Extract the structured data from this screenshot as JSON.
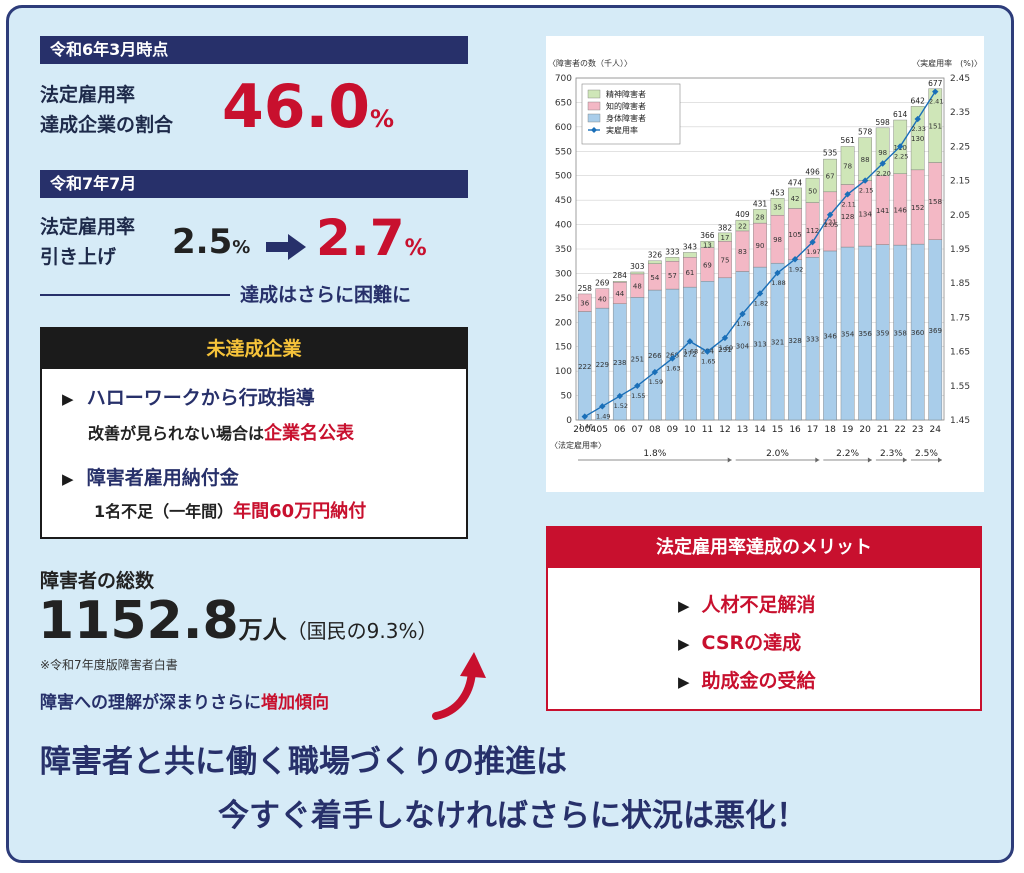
{
  "section1": {
    "date_label": "令和6年3月時点",
    "label_line1": "法定雇用率",
    "label_line2": "達成企業の割合",
    "value": "46.0",
    "unit": "%"
  },
  "section2": {
    "date_label": "令和7年7月",
    "label_line1": "法定雇用率",
    "label_line2": "引き上げ",
    "from_value": "2.5",
    "from_unit": "%",
    "to_value": "2.7",
    "to_unit": "%",
    "note": "達成はさらに困難に"
  },
  "unachieved": {
    "title": "未達成企業",
    "item1_title": "ハローワークから行政指導",
    "item1_sub_prefix": "改善が見られない場合は",
    "item1_sub_highlight": "企業名公表",
    "item2_title": "障害者雇用納付金",
    "item2_sub_prefix": "1名不足（一年間）",
    "item2_sub_highlight": "年間60万円納付"
  },
  "total": {
    "label": "障害者の総数",
    "value": "1152.8",
    "unit": "万人",
    "paren": "（国民の9.3%）",
    "source": "※令和7年度版障害者白書",
    "trend_prefix": "障害への理解が深まりさらに",
    "trend_highlight": "増加傾向"
  },
  "merits": {
    "title": "法定雇用率達成のメリット",
    "items": [
      "人材不足解消",
      "CSRの達成",
      "助成金の受給"
    ]
  },
  "footer": {
    "line1": "障害者と共に働く職場づくりの推進は",
    "line2": "今すぐ着手しなければさらに状況は悪化！"
  },
  "chart_data": {
    "type": "bar",
    "stacked": true,
    "y_left_label": "〈障害者の数（千人）〉",
    "y_right_label": "〈実雇用率　(%)〉",
    "ylim": [
      0,
      700
    ],
    "y2lim": [
      1.45,
      2.45
    ],
    "yticks": [
      "0",
      "50",
      "100",
      "150",
      "200",
      "250",
      "300",
      "350",
      "400",
      "450",
      "500",
      "550",
      "600",
      "650",
      "700"
    ],
    "y2ticks": [
      "1.45",
      "1.55",
      "1.65",
      "1.75",
      "1.85",
      "1.95",
      "2.05",
      "2.15",
      "2.25",
      "2.35",
      "2.45"
    ],
    "categories": [
      "2004",
      "05",
      "06",
      "07",
      "08",
      "09",
      "10",
      "11",
      "12",
      "13",
      "14",
      "15",
      "16",
      "17",
      "18",
      "19",
      "20",
      "21",
      "22",
      "23",
      "24"
    ],
    "series": [
      {
        "name": "身体障害者",
        "color": "#a9cdea",
        "values": [
          222,
          229,
          238,
          251,
          266,
          268,
          272,
          284,
          291,
          304,
          313,
          321,
          328,
          333,
          346,
          354,
          356,
          359,
          358,
          360,
          369
        ]
      },
      {
        "name": "知的障害者",
        "color": "#f3b8c5",
        "values": [
          36,
          40,
          44,
          48,
          54,
          57,
          61,
          69,
          75,
          83,
          90,
          98,
          105,
          112,
          121,
          128,
          134,
          141,
          146,
          152,
          158
        ]
      },
      {
        "name": "精神障害者",
        "color": "#cfe6b8",
        "values": [
          0,
          0,
          2,
          4,
          6,
          8,
          10,
          13,
          17,
          22,
          28,
          35,
          42,
          50,
          67,
          78,
          88,
          98,
          110,
          130,
          151
        ]
      }
    ],
    "totals": [
      258,
      269,
      284,
      303,
      326,
      333,
      343,
      366,
      382,
      409,
      431,
      453,
      474,
      496,
      535,
      561,
      578,
      598,
      614,
      642,
      677
    ],
    "rate": {
      "name": "実雇用率",
      "color": "#1a6fb8",
      "values": [
        1.46,
        1.49,
        1.52,
        1.55,
        1.59,
        1.63,
        1.68,
        1.65,
        1.69,
        1.76,
        1.82,
        1.88,
        1.92,
        1.97,
        2.05,
        2.11,
        2.15,
        2.2,
        2.25,
        2.33,
        2.41
      ]
    },
    "statutory_label": "〈法定雇用率〉",
    "statutory_segments": [
      "1.8%",
      "2.0%",
      "2.2%",
      "2.3%",
      "2.5%"
    ]
  }
}
